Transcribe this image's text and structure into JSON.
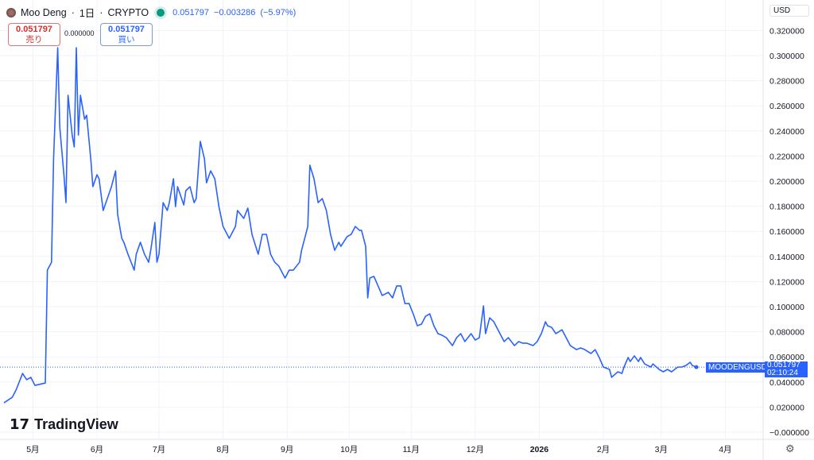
{
  "header": {
    "symbol": "Moo Deng",
    "interval": "1日",
    "exchange": "CRYPTO",
    "sep": "·",
    "price": "0.051797",
    "change": "−0.003286",
    "change_pct": "(−5.97%)"
  },
  "trade": {
    "sell_price": "0.051797",
    "sell_label": "売り",
    "spread": "0.000000",
    "buy_price": "0.051797",
    "buy_label": "買い"
  },
  "currency": "USD",
  "brand": "TradingView",
  "last": {
    "ticker": "MOODENGUSD",
    "price": "0.051797",
    "countdown": "02:10:24"
  },
  "colors": {
    "line": "#2962ff",
    "tag": "#2962ff"
  },
  "chart_data": {
    "type": "line",
    "title": "Moo Deng · 1日 · CRYPTO",
    "xlabel": "",
    "ylabel": "USD",
    "grid": true,
    "ylim": [
      -0.007,
      0.35
    ],
    "yticks": [
      "0.320000",
      "0.300000",
      "0.280000",
      "0.260000",
      "0.240000",
      "0.220000",
      "0.200000",
      "0.180000",
      "0.160000",
      "0.140000",
      "0.120000",
      "0.100000",
      "0.080000",
      "0.060000",
      "0.040000",
      "0.020000",
      "−0.000000"
    ],
    "ytick_values": [
      0.32,
      0.3,
      0.28,
      0.26,
      0.24,
      0.22,
      0.2,
      0.18,
      0.16,
      0.14,
      0.12,
      0.1,
      0.08,
      0.06,
      0.04,
      0.02,
      0
    ],
    "xticks": [
      "5月",
      "6月",
      "7月",
      "8月",
      "9月",
      "10月",
      "11月",
      "12月",
      "2026",
      "2月",
      "3月",
      "4月"
    ],
    "xtick_days": [
      14,
      45,
      75,
      106,
      137,
      167,
      197,
      228,
      259,
      290,
      318,
      349
    ],
    "x_unit": "days since start",
    "x": [
      0,
      4,
      6,
      9,
      11,
      13,
      15,
      17,
      20,
      21,
      23,
      24,
      26,
      27,
      29,
      30,
      31,
      33,
      34,
      35,
      36,
      37,
      39,
      40,
      42,
      43,
      45,
      46,
      48,
      50,
      52,
      54,
      55,
      57,
      58,
      60,
      63,
      64,
      66,
      68,
      70,
      71,
      73,
      74,
      75,
      77,
      79,
      80,
      82,
      83,
      84,
      87,
      88,
      90,
      92,
      93,
      95,
      97,
      98,
      100,
      102,
      104,
      106,
      109,
      112,
      113,
      116,
      118,
      120,
      123,
      125,
      127,
      129,
      131,
      133,
      136,
      138,
      140,
      143,
      144,
      147,
      148,
      150,
      152,
      154,
      156,
      158,
      160,
      162,
      163,
      166,
      168,
      170,
      172,
      173,
      175,
      176,
      177,
      179,
      181,
      183,
      186,
      188,
      190,
      192,
      194,
      196,
      198,
      200,
      202,
      204,
      206,
      208,
      210,
      212,
      214,
      217,
      219,
      221,
      223,
      226,
      228,
      230,
      232,
      233,
      235,
      237,
      240,
      242,
      244,
      247,
      249,
      251,
      253,
      256,
      258,
      260,
      262,
      263,
      265,
      267,
      270,
      272,
      274,
      277,
      279,
      281,
      284,
      286,
      288,
      290,
      293,
      294,
      297,
      299,
      300,
      302,
      303,
      305,
      307,
      308,
      310,
      313,
      314,
      317,
      319,
      321,
      323,
      326,
      328,
      330,
      332,
      333,
      335
    ],
    "y": [
      0.0234,
      0.0278,
      0.0342,
      0.0468,
      0.0418,
      0.0437,
      0.0373,
      0.038,
      0.0392,
      0.1291,
      0.1354,
      0.2177,
      0.3063,
      0.243,
      0.2051,
      0.1829,
      0.2684,
      0.2367,
      0.2272,
      0.3063,
      0.2367,
      0.2684,
      0.2494,
      0.2525,
      0.2177,
      0.1956,
      0.2051,
      0.2019,
      0.1766,
      0.1861,
      0.1956,
      0.2082,
      0.1734,
      0.1544,
      0.1513,
      0.1418,
      0.1291,
      0.1418,
      0.1513,
      0.1418,
      0.1354,
      0.1449,
      0.1671,
      0.1354,
      0.1418,
      0.1829,
      0.1766,
      0.1829,
      0.2019,
      0.1797,
      0.1956,
      0.181,
      0.1924,
      0.1956,
      0.1829,
      0.1861,
      0.2316,
      0.2177,
      0.1987,
      0.2082,
      0.2019,
      0.1797,
      0.1639,
      0.1544,
      0.1639,
      0.1766,
      0.1703,
      0.1785,
      0.1576,
      0.1418,
      0.1576,
      0.1576,
      0.1418,
      0.1354,
      0.1323,
      0.1228,
      0.1291,
      0.1291,
      0.1354,
      0.1449,
      0.1639,
      0.2127,
      0.2019,
      0.1829,
      0.1861,
      0.1766,
      0.1576,
      0.1449,
      0.1513,
      0.1481,
      0.1557,
      0.1576,
      0.1639,
      0.1608,
      0.1608,
      0.1481,
      0.107,
      0.1228,
      0.1241,
      0.1165,
      0.1089,
      0.1114,
      0.107,
      0.1165,
      0.1165,
      0.1025,
      0.1025,
      0.0943,
      0.0848,
      0.0861,
      0.0924,
      0.0943,
      0.0848,
      0.0785,
      0.0772,
      0.0753,
      0.069,
      0.0753,
      0.0785,
      0.0722,
      0.0785,
      0.0734,
      0.0753,
      0.1006,
      0.0785,
      0.0911,
      0.088,
      0.0785,
      0.0722,
      0.0753,
      0.069,
      0.0722,
      0.0709,
      0.0709,
      0.069,
      0.0722,
      0.0785,
      0.088,
      0.0848,
      0.0835,
      0.0785,
      0.0816,
      0.0753,
      0.069,
      0.0658,
      0.0671,
      0.0658,
      0.0627,
      0.0658,
      0.0595,
      0.0519,
      0.05,
      0.0437,
      0.0481,
      0.0468,
      0.0519,
      0.0595,
      0.0563,
      0.0608,
      0.0563,
      0.0595,
      0.0544,
      0.0519,
      0.0544,
      0.05,
      0.0481,
      0.05,
      0.0481,
      0.0519,
      0.0519,
      0.0532,
      0.0557,
      0.0532,
      0.0518
    ]
  }
}
